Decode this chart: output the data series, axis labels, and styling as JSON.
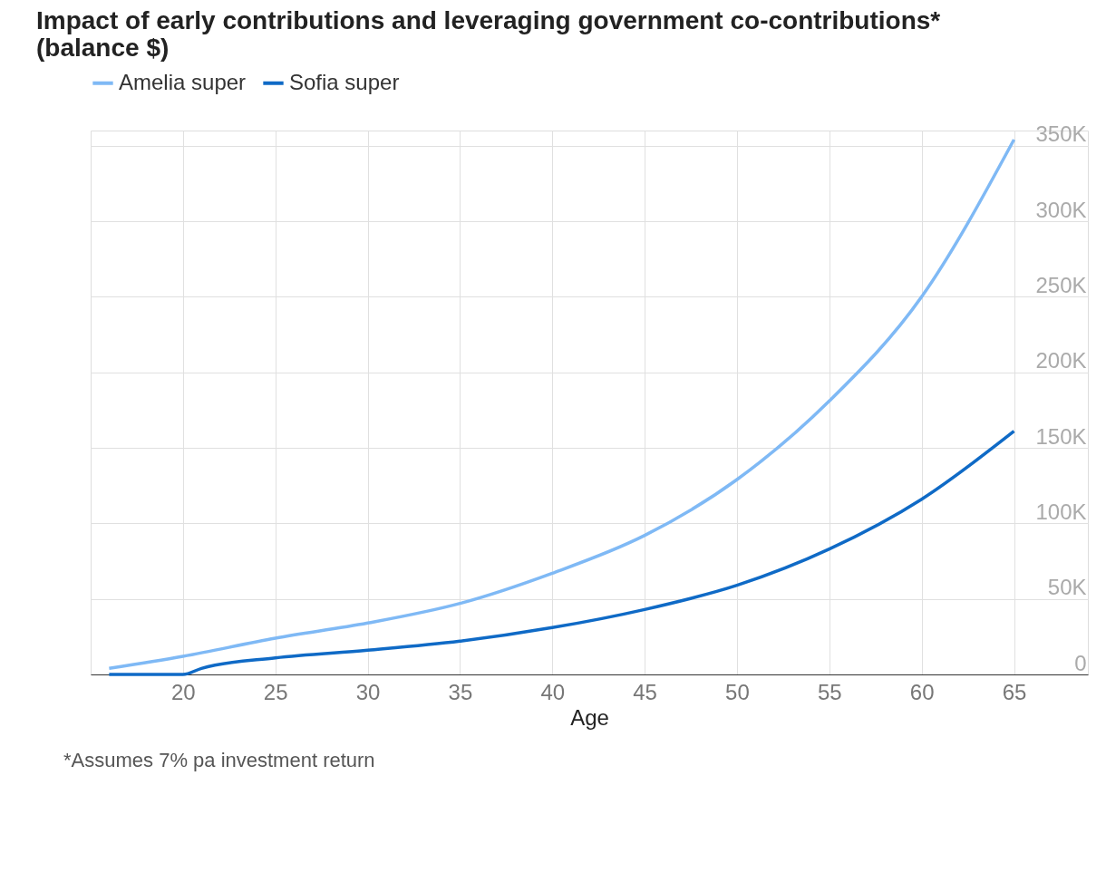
{
  "chart_data": {
    "type": "line",
    "title": [
      "Impact of early contributions and leveraging government co-contributions*",
      "(balance $)"
    ],
    "xlabel": "Age",
    "annotations": [
      "*Assumes 7% pa investment return"
    ],
    "series": [
      {
        "name": "Amelia super",
        "color": "#7fb9f5",
        "x": [
          16,
          20,
          25,
          30,
          35,
          40,
          45,
          50,
          55,
          60,
          65
        ],
        "values": [
          4000,
          12000,
          24000,
          34000,
          47000,
          67000,
          92000,
          129000,
          181000,
          250000,
          354000
        ]
      },
      {
        "name": "Sofia super",
        "color": "#0f6ac6",
        "x": [
          16,
          20,
          21,
          25,
          30,
          35,
          40,
          45,
          50,
          55,
          60,
          65
        ],
        "values": [
          0,
          0,
          4000,
          11000,
          16000,
          22000,
          31000,
          43000,
          59000,
          83000,
          116000,
          161000
        ]
      }
    ],
    "xlim": [
      15,
      69
    ],
    "xticks": [
      20,
      25,
      30,
      35,
      40,
      45,
      50,
      55,
      60,
      65
    ],
    "ylim": [
      0,
      360000
    ],
    "yticks": [
      {
        "value": 0,
        "label": "0"
      },
      {
        "value": 50000,
        "label": "50K"
      },
      {
        "value": 100000,
        "label": "100K"
      },
      {
        "value": 150000,
        "label": "150K"
      },
      {
        "value": 200000,
        "label": "200K"
      },
      {
        "value": 250000,
        "label": "250K"
      },
      {
        "value": 300000,
        "label": "300K"
      },
      {
        "value": 350000,
        "label": "350K"
      }
    ],
    "grid": true,
    "legend": "top left",
    "line_style": "solid",
    "marker": "none"
  }
}
